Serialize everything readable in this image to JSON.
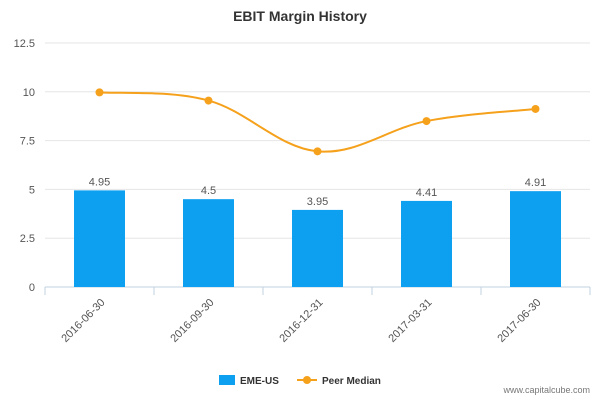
{
  "chart_data": {
    "type": "bar",
    "title": "EBIT Margin History",
    "categories": [
      "2016-06-30",
      "2016-09-30",
      "2016-12-31",
      "2017-03-31",
      "2017-06-30"
    ],
    "series": [
      {
        "name": "EME-US",
        "type": "bar",
        "values": [
          4.95,
          4.5,
          3.95,
          4.41,
          4.91
        ],
        "color": "#0ea0f0"
      },
      {
        "name": "Peer Median",
        "type": "line",
        "values": [
          9.97,
          9.55,
          6.95,
          8.5,
          9.12
        ],
        "color": "#f5a11c"
      }
    ],
    "data_labels": [
      "4.95",
      "4.5",
      "3.95",
      "4.41",
      "4.91"
    ],
    "y_ticks": [
      "0",
      "2.5",
      "5",
      "7.5",
      "10",
      "12.5"
    ],
    "ylim": [
      0,
      12.5
    ],
    "grid": true,
    "legend_position": "bottom-center",
    "footer": "www.capitalcube.com"
  }
}
